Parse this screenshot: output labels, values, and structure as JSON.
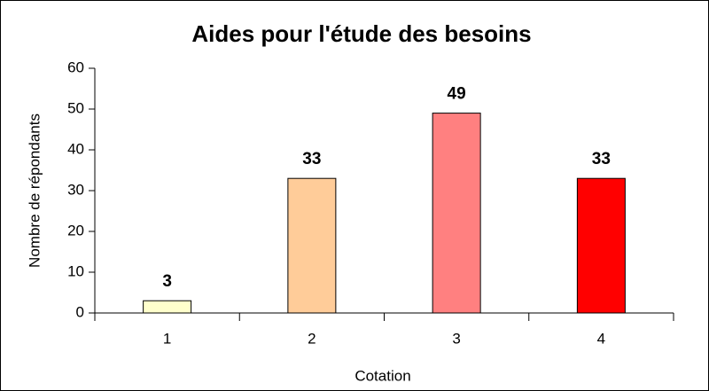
{
  "chart_data": {
    "type": "bar",
    "title": "Aides pour l'étude des besoins",
    "x_label": "Cotation",
    "y_label": "Nombre de répondants",
    "categories": [
      "1",
      "2",
      "3",
      "4"
    ],
    "values": [
      3,
      33,
      49,
      33
    ],
    "colors": [
      "#ffffcc",
      "#ffcc99",
      "#ff8080",
      "#ff0000"
    ],
    "ylim": [
      0,
      60
    ],
    "yticks": [
      0,
      10,
      20,
      30,
      40,
      50,
      60
    ],
    "grid": false,
    "data_labels": true
  }
}
